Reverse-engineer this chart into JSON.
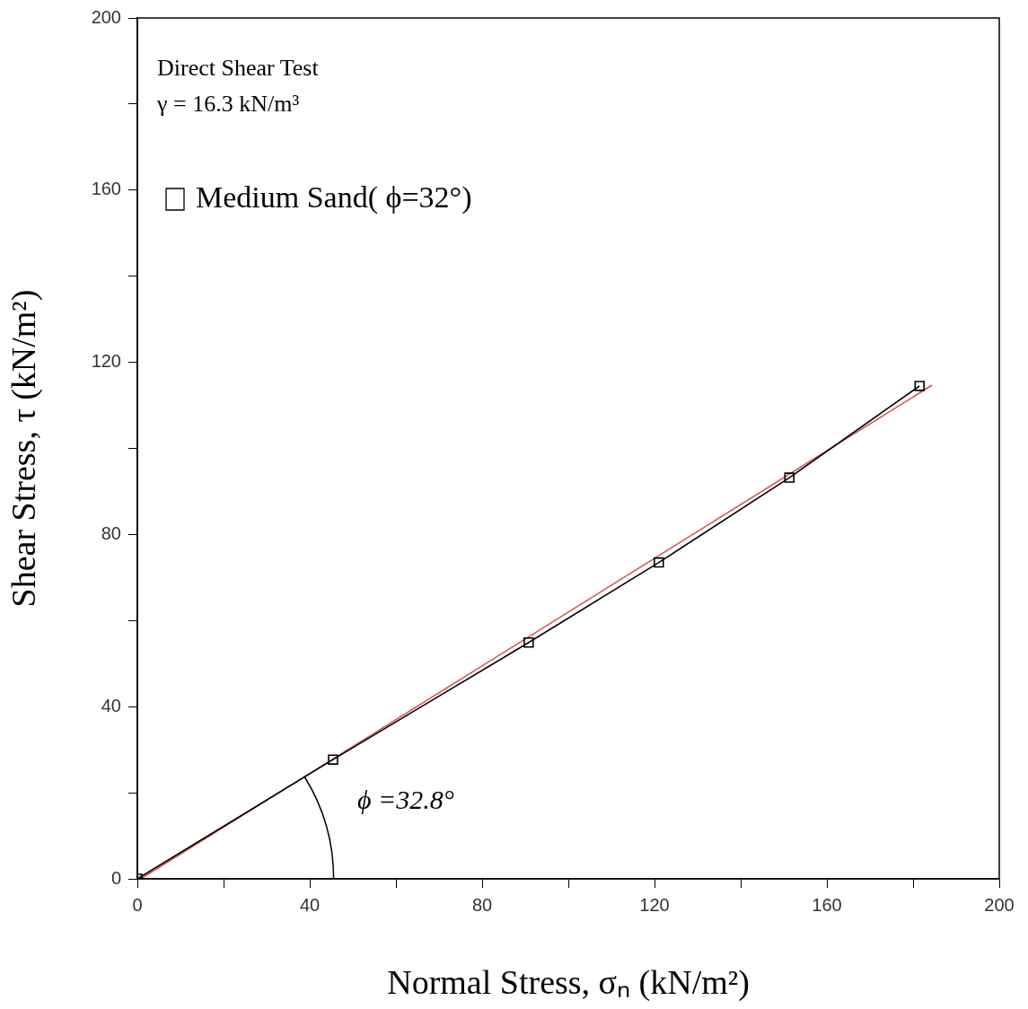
{
  "chart_data": {
    "type": "line",
    "xlabel": "Normal Stress, σₙ (kN/m²)",
    "ylabel": "Shear Stress, τ (kN/m²)",
    "annotations": [
      "Direct Shear Test",
      "γ = 16.3 kN/m³",
      "ϕ =32.8°"
    ],
    "xlim": [
      0,
      200
    ],
    "ylim": [
      0,
      200
    ],
    "xticks": [
      0,
      {
        "value": 20,
        "label": null
      },
      40,
      {
        "value": 60,
        "label": null
      },
      80,
      {
        "value": 100,
        "label": null
      },
      120,
      {
        "value": 140,
        "label": null
      },
      160,
      {
        "value": 180,
        "label": null
      },
      200
    ],
    "yticks": [
      0,
      {
        "value": 20,
        "label": null
      },
      40,
      {
        "value": 60,
        "label": null
      },
      80,
      {
        "value": 100,
        "label": null
      },
      120,
      {
        "value": 140,
        "label": null
      },
      160,
      {
        "value": 180,
        "label": null
      },
      200
    ],
    "grid": false,
    "legend": "top left",
    "marker": "square",
    "series": [
      {
        "name": "Medium Sand( ϕ=32°)",
        "color": "#000000",
        "x": [
          0,
          45.4,
          90.8,
          121,
          151.3,
          181.5
        ],
        "values": [
          0,
          27.7,
          54.9,
          73.5,
          93.2,
          114.5
        ]
      },
      {
        "type": "line",
        "color": "#d9534f",
        "marker": "none",
        "x": [
          0.8,
          184.4
        ],
        "values": [
          0,
          114.7
        ]
      }
    ]
  }
}
